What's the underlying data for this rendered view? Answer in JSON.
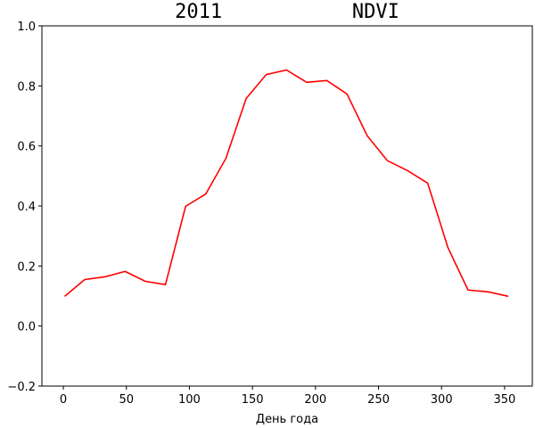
{
  "chart_data": {
    "type": "line",
    "title": "2011           NDVI",
    "xlabel": "День года",
    "x": [
      1,
      17,
      33,
      49,
      65,
      81,
      97,
      113,
      129,
      145,
      161,
      177,
      193,
      209,
      225,
      241,
      257,
      273,
      289,
      305,
      321,
      337,
      353
    ],
    "series": [
      {
        "color": "#ff0000",
        "values": [
          0.099,
          0.155,
          0.164,
          0.182,
          0.149,
          0.138,
          0.399,
          0.44,
          0.559,
          0.758,
          0.838,
          0.853,
          0.812,
          0.818,
          0.773,
          0.634,
          0.551,
          0.518,
          0.476,
          0.262,
          0.12,
          0.114,
          0.099
        ]
      }
    ],
    "xlim": [
      -17,
      372
    ],
    "xticks": [
      0,
      50,
      100,
      150,
      200,
      250,
      300,
      350
    ],
    "ylim": [
      -0.2,
      1.0
    ],
    "yticks": [
      {
        "value": -0.2,
        "label": "−0.2"
      },
      {
        "value": 0,
        "label": "0.0"
      },
      0.2,
      0.4,
      0.6,
      0.8,
      {
        "value": 1.0,
        "label": "1.0"
      }
    ]
  }
}
